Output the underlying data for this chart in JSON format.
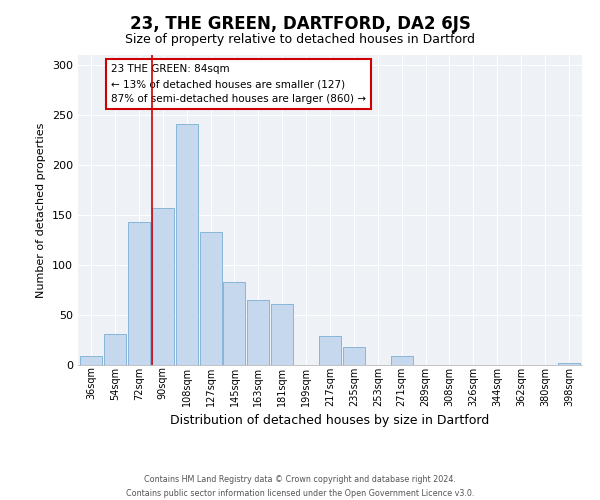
{
  "title": "23, THE GREEN, DARTFORD, DA2 6JS",
  "subtitle": "Size of property relative to detached houses in Dartford",
  "xlabel": "Distribution of detached houses by size in Dartford",
  "ylabel": "Number of detached properties",
  "bar_labels": [
    "36sqm",
    "54sqm",
    "72sqm",
    "90sqm",
    "108sqm",
    "127sqm",
    "145sqm",
    "163sqm",
    "181sqm",
    "199sqm",
    "217sqm",
    "235sqm",
    "253sqm",
    "271sqm",
    "289sqm",
    "308sqm",
    "326sqm",
    "344sqm",
    "362sqm",
    "380sqm",
    "398sqm"
  ],
  "bar_values": [
    9,
    31,
    143,
    157,
    241,
    133,
    83,
    65,
    61,
    0,
    29,
    18,
    0,
    9,
    0,
    0,
    0,
    0,
    0,
    0,
    2
  ],
  "bar_color": "#c5d8ed",
  "bar_edge_color": "#7bafd4",
  "ylim": [
    0,
    310
  ],
  "yticks": [
    0,
    50,
    100,
    150,
    200,
    250,
    300
  ],
  "vline_color": "#cc0000",
  "annotation_title": "23 THE GREEN: 84sqm",
  "annotation_line1": "← 13% of detached houses are smaller (127)",
  "annotation_line2": "87% of semi-detached houses are larger (860) →",
  "annotation_box_color": "#cc0000",
  "footer1": "Contains HM Land Registry data © Crown copyright and database right 2024.",
  "footer2": "Contains public sector information licensed under the Open Government Licence v3.0.",
  "background_color": "#eef2f7"
}
